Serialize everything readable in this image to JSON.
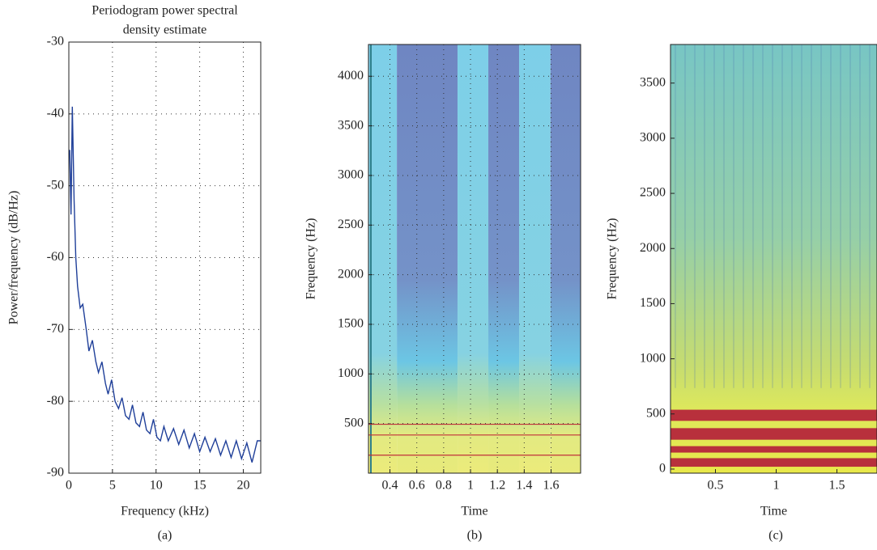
{
  "chart_data": [
    {
      "type": "line",
      "title": [
        "Periodogram power spectral",
        "density estimate"
      ],
      "xlabel": "Frequency (kHz)",
      "ylabel": "Power/frequency (dB/Hz)",
      "caption": "(a)",
      "color": "#1f3f99",
      "grid": true,
      "xlim": [
        0,
        22
      ],
      "ylim": [
        -90,
        -30
      ],
      "xticks": [
        0,
        5,
        10,
        15,
        20
      ],
      "yticks": [
        -90,
        -80,
        -70,
        -60,
        -50,
        -40,
        -30
      ],
      "x": [
        0.1,
        0.25,
        0.4,
        0.6,
        0.8,
        1.0,
        1.3,
        1.6,
        2.0,
        2.3,
        2.7,
        3.1,
        3.4,
        3.8,
        4.2,
        4.5,
        4.9,
        5.3,
        5.7,
        6.1,
        6.5,
        6.9,
        7.3,
        7.7,
        8.1,
        8.5,
        8.9,
        9.3,
        9.7,
        10.1,
        10.5,
        10.9,
        11.4,
        12.0,
        12.6,
        13.2,
        13.8,
        14.4,
        15.0,
        15.6,
        16.2,
        16.8,
        17.4,
        18.0,
        18.6,
        19.2,
        19.8,
        20.4,
        21.0,
        21.6,
        22.0
      ],
      "values": [
        -45,
        -54,
        -39,
        -52,
        -60,
        -64,
        -67,
        -66.5,
        -70,
        -73,
        -71.5,
        -74.5,
        -76,
        -74.5,
        -77.5,
        -79,
        -77,
        -80,
        -81,
        -79.5,
        -82,
        -82.5,
        -80.5,
        -83,
        -83.5,
        -81.5,
        -84,
        -84.5,
        -82.5,
        -85,
        -85.5,
        -83.5,
        -85.5,
        -83.8,
        -86,
        -84,
        -86.5,
        -84.5,
        -87,
        -85,
        -87,
        -85.2,
        -87.5,
        -85.5,
        -87.8,
        -85.5,
        -88,
        -85.8,
        -88.5,
        -85.5,
        -85.5
      ]
    },
    {
      "type": "spectrogram",
      "xlabel": "Time",
      "ylabel": "Frequency (Hz)",
      "caption": "(b)",
      "grid": true,
      "xlim": [
        0.24,
        1.82
      ],
      "ylim": [
        0,
        4320
      ],
      "xticks": [
        0.4,
        0.6,
        0.8,
        1,
        1.2,
        1.4,
        1.6
      ],
      "yticks": [
        500,
        1000,
        1500,
        2000,
        2500,
        3000,
        3500,
        4000
      ]
    },
    {
      "type": "spectrogram",
      "xlabel": "Time",
      "ylabel": "Frequency (Hz)",
      "caption": "(c)",
      "grid": false,
      "xlim": [
        0.13,
        1.83
      ],
      "ylim": [
        -37,
        3850
      ],
      "xticks": [
        0.5,
        1,
        1.5
      ],
      "yticks": [
        0,
        500,
        1000,
        1500,
        2000,
        2500,
        3000,
        3500
      ]
    }
  ]
}
